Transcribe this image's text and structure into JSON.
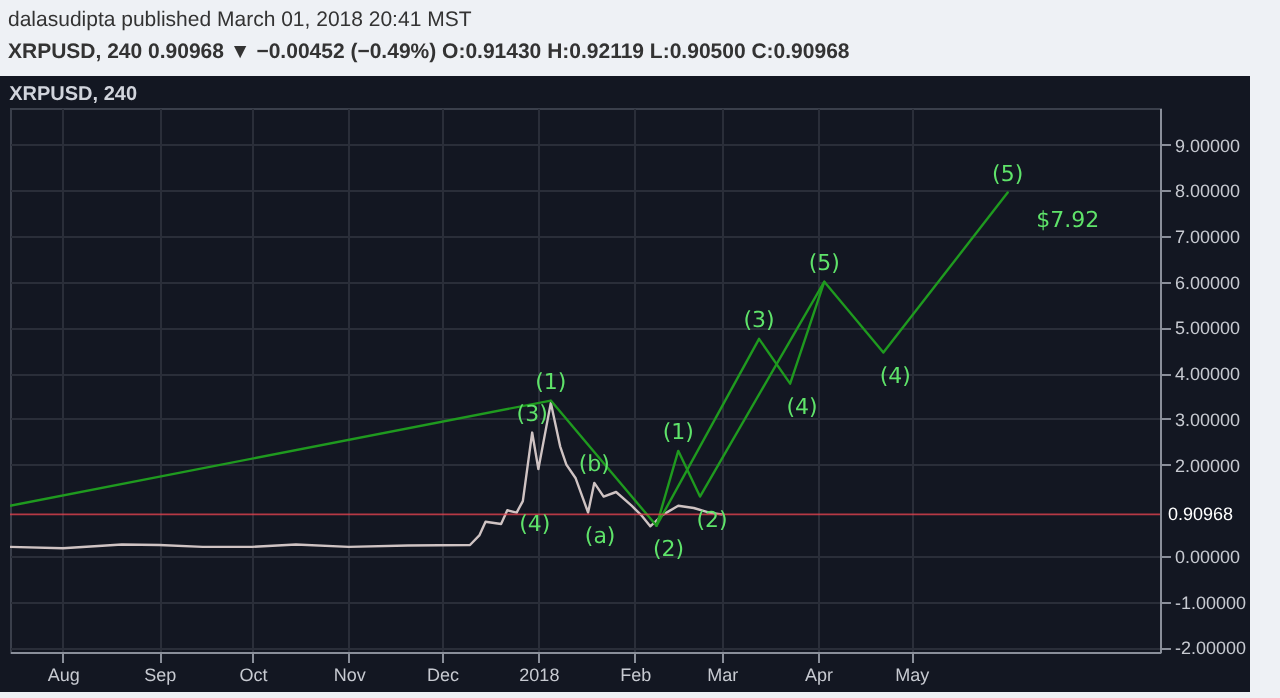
{
  "chart_data": {
    "type": "line",
    "title": "XRPUSD, 240",
    "annotations": [
      "dalasudipta published March 01, 2018 20:41 MST",
      "XRPUSD, 240  0.90968 ▼ −0.00452 (−0.49%)  O:0.91430 H:0.92119 L:0.90500 C:0.90968",
      {
        "text": "(1)",
        "x": "2018-01-05",
        "y": 3.4
      },
      {
        "text": "(3)",
        "x": "2017-12-30",
        "y": 2.7
      },
      {
        "text": "(4)",
        "x": "2017-12-27",
        "y": 1.2
      },
      {
        "text": "(a)",
        "x": "2018-01-17",
        "y": 0.95
      },
      {
        "text": "(b)",
        "x": "2018-01-19",
        "y": 1.6
      },
      {
        "text": "(2)",
        "x": "2018-02-08",
        "y": 0.66
      },
      {
        "text": "(1)",
        "x": "2018-02-15",
        "y": 2.3
      },
      {
        "text": "(2)",
        "x": "2018-02-22",
        "y": 1.3
      },
      {
        "text": "(3)",
        "x": "2018-03-13",
        "y": 4.75
      },
      {
        "text": "(4)",
        "x": "2018-03-23",
        "y": 3.77
      },
      {
        "text": "(5)",
        "x": "2018-04-03",
        "y": 6.0
      },
      {
        "text": "(4)",
        "x": "2018-04-22",
        "y": 4.45
      },
      {
        "text": "(5)",
        "x": "2018-06-01",
        "y": 7.95
      },
      {
        "text": "$7.92",
        "x": "2018-06-01",
        "y": 7.95
      }
    ],
    "xlim": [
      "2017-07-15",
      "2018-07-20"
    ],
    "xticks": [
      {
        "value": "2017-08-01",
        "label": "Aug"
      },
      {
        "value": "2017-09-01",
        "label": "Sep"
      },
      {
        "value": "2017-10-01",
        "label": "Oct"
      },
      {
        "value": "2017-11-01",
        "label": "Nov"
      },
      {
        "value": "2017-12-01",
        "label": "Dec"
      },
      {
        "value": "2018-01-01",
        "label": "2018"
      },
      {
        "value": "2018-02-01",
        "label": "Feb"
      },
      {
        "value": "2018-03-01",
        "label": "Mar"
      },
      {
        "value": "2018-04-01",
        "label": "Apr"
      },
      {
        "value": "2018-05-01",
        "label": "May"
      }
    ],
    "ylim": [
      -2.1,
      9.8
    ],
    "yticks": [
      {
        "value": 9,
        "label": "9.00000"
      },
      {
        "value": 8,
        "label": "8.00000"
      },
      {
        "value": 7,
        "label": "7.00000"
      },
      {
        "value": 6,
        "label": "6.00000"
      },
      {
        "value": 5,
        "label": "5.00000"
      },
      {
        "value": 4,
        "label": "4.00000"
      },
      {
        "value": 3,
        "label": "3.00000"
      },
      {
        "value": 2,
        "label": "2.00000"
      },
      {
        "value": 0,
        "label": "0.00000"
      },
      {
        "value": -1,
        "label": "-1.00000"
      },
      {
        "value": -2,
        "label": "-2.00000"
      }
    ],
    "grid": true,
    "tick_labels": "xy",
    "ref_lines": [
      {
        "axis": "y",
        "value": 0.90968,
        "label": "0.90968",
        "color": "#e0424f"
      }
    ],
    "series": [
      {
        "color": "#cfc3c3",
        "x": [
          "2017-07-15",
          "2017-08-01",
          "2017-08-20",
          "2017-09-01",
          "2017-09-15",
          "2017-10-01",
          "2017-10-15",
          "2017-11-01",
          "2017-11-20",
          "2017-12-10",
          "2017-12-13",
          "2017-12-15",
          "2017-12-20",
          "2017-12-22",
          "2017-12-25",
          "2017-12-27",
          "2017-12-30",
          "2018-01-01",
          "2018-01-05",
          "2018-01-08",
          "2018-01-10",
          "2018-01-13",
          "2018-01-17",
          "2018-01-19",
          "2018-01-22",
          "2018-01-26",
          "2018-01-31",
          "2018-02-03",
          "2018-02-06",
          "2018-02-10",
          "2018-02-15",
          "2018-02-20",
          "2018-02-25",
          "2018-03-01"
        ],
        "values": [
          0.2,
          0.17,
          0.25,
          0.24,
          0.2,
          0.2,
          0.25,
          0.2,
          0.23,
          0.24,
          0.45,
          0.75,
          0.7,
          1.0,
          0.95,
          1.2,
          2.7,
          1.9,
          3.35,
          2.4,
          2.0,
          1.7,
          0.95,
          1.6,
          1.3,
          1.4,
          1.1,
          0.9,
          0.65,
          0.9,
          1.1,
          1.05,
          0.95,
          0.91
        ]
      },
      {
        "color": "#1f9a1f",
        "x": [
          "2017-07-15",
          "2018-01-05",
          "2018-02-08",
          "2018-02-15",
          "2018-02-22",
          "2018-04-03"
        ],
        "values": [
          1.1,
          3.4,
          0.66,
          2.3,
          1.3,
          6.0
        ]
      },
      {
        "color": "#1f9a1f",
        "x": [
          "2018-02-08",
          "2018-03-13",
          "2018-03-23",
          "2018-04-03",
          "2018-04-22",
          "2018-06-01"
        ],
        "values": [
          0.66,
          4.75,
          3.77,
          6.0,
          4.45,
          7.95
        ]
      }
    ]
  }
}
